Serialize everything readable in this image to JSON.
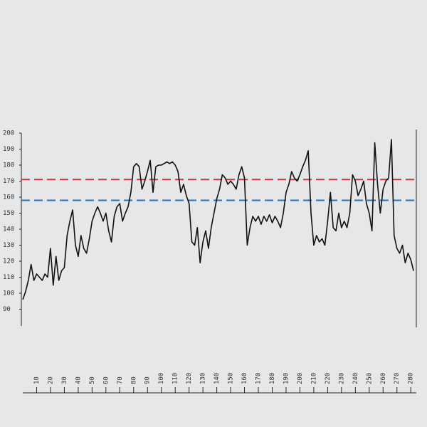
{
  "chart_data": {
    "type": "line",
    "x": [
      0,
      2,
      4,
      6,
      8,
      10,
      12,
      14,
      16,
      18,
      20,
      22,
      24,
      26,
      28,
      30,
      32,
      34,
      36,
      38,
      40,
      42,
      44,
      46,
      48,
      50,
      52,
      54,
      56,
      58,
      60,
      62,
      64,
      66,
      68,
      70,
      72,
      74,
      76,
      78,
      80,
      82,
      84,
      86,
      88,
      90,
      92,
      94,
      96,
      98,
      100,
      102,
      104,
      106,
      108,
      110,
      112,
      114,
      116,
      118,
      120,
      122,
      124,
      126,
      128,
      130,
      132,
      134,
      136,
      138,
      140,
      142,
      144,
      146,
      148,
      150,
      152,
      154,
      156,
      158,
      160,
      162,
      164,
      166,
      168,
      170,
      172,
      174,
      176,
      178,
      180,
      182,
      184,
      186,
      188,
      190,
      192,
      194,
      196,
      198,
      200,
      202,
      204,
      206,
      208,
      210,
      212,
      214,
      216,
      218,
      220,
      222,
      224,
      226,
      228,
      230,
      232,
      234,
      236,
      238,
      240,
      242,
      244,
      246,
      248,
      250,
      252,
      254,
      256,
      258,
      260,
      262,
      264,
      266,
      268,
      270,
      272,
      274,
      276,
      278,
      280,
      282
    ],
    "values": [
      96,
      101,
      108,
      118,
      108,
      112,
      110,
      108,
      112,
      110,
      128,
      105,
      123,
      108,
      114,
      116,
      136,
      145,
      152,
      130,
      123,
      136,
      128,
      125,
      134,
      145,
      150,
      154,
      150,
      145,
      150,
      139,
      132,
      148,
      154,
      156,
      145,
      150,
      154,
      163,
      179,
      181,
      179,
      165,
      170,
      176,
      183,
      163,
      179,
      180,
      180,
      181,
      182,
      181,
      182,
      180,
      176,
      163,
      168,
      161,
      156,
      132,
      130,
      141,
      119,
      132,
      139,
      128,
      141,
      150,
      159,
      165,
      174,
      172,
      168,
      170,
      168,
      165,
      174,
      179,
      172,
      130,
      141,
      148,
      145,
      148,
      143,
      148,
      145,
      149,
      144,
      148,
      145,
      141,
      150,
      163,
      168,
      176,
      172,
      170,
      174,
      179,
      183,
      189,
      150,
      130,
      136,
      132,
      134,
      130,
      145,
      163,
      141,
      139,
      150,
      141,
      145,
      141,
      150,
      174,
      170,
      161,
      165,
      170,
      156,
      150,
      139,
      194,
      168,
      150,
      165,
      170,
      172,
      196,
      136,
      128,
      125,
      130,
      119,
      125,
      121,
      114
    ],
    "color": "#111111",
    "reference_lines": [
      {
        "value": 171,
        "color": "#d0343a"
      },
      {
        "value": 158,
        "color": "#2b72b8"
      }
    ],
    "ylim": [
      80,
      200
    ],
    "yticks": [
      90,
      100,
      110,
      120,
      130,
      140,
      150,
      160,
      170,
      180,
      190,
      200
    ],
    "xlim": [
      0,
      284
    ],
    "xticks": [
      10,
      20,
      30,
      40,
      50,
      60,
      70,
      80,
      90,
      100,
      110,
      120,
      130,
      140,
      150,
      160,
      170,
      180,
      190,
      200,
      210,
      220,
      230,
      240,
      250,
      260,
      270,
      280
    ],
    "grid": false
  }
}
